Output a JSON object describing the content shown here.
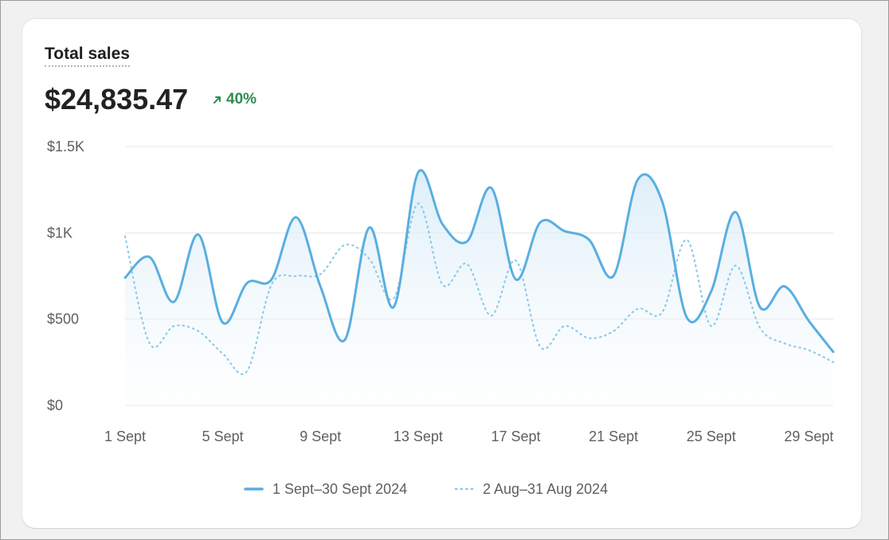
{
  "card": {
    "title": "Total sales",
    "total": "$24,835.47",
    "change": "40%",
    "change_color": "#2e8b4e"
  },
  "colors": {
    "current": "#5aaee0",
    "previous": "#8fcbe8",
    "grid": "#e6e6e6",
    "text": "#5f5f5f"
  },
  "chart_data": {
    "type": "line",
    "title": "Total sales",
    "xlabel": "",
    "ylabel": "",
    "ylim": [
      0,
      1500
    ],
    "yticks": [
      0,
      500,
      1000,
      1500
    ],
    "ytick_labels": [
      "$0",
      "$500",
      "$1K",
      "$1.5K"
    ],
    "xtick_labels": [
      "1 Sept",
      "5 Sept",
      "9 Sept",
      "13 Sept",
      "17 Sept",
      "21 Sept",
      "25 Sept",
      "29 Sept"
    ],
    "x": [
      "1 Sept",
      "2 Sept",
      "3 Sept",
      "4 Sept",
      "5 Sept",
      "6 Sept",
      "7 Sept",
      "8 Sept",
      "9 Sept",
      "10 Sept",
      "11 Sept",
      "12 Sept",
      "13 Sept",
      "14 Sept",
      "15 Sept",
      "16 Sept",
      "17 Sept",
      "18 Sept",
      "19 Sept",
      "20 Sept",
      "21 Sept",
      "22 Sept",
      "23 Sept",
      "24 Sept",
      "25 Sept",
      "26 Sept",
      "27 Sept",
      "28 Sept",
      "29 Sept",
      "30 Sept"
    ],
    "grid": true,
    "legend": "bottom-center",
    "series": [
      {
        "name": "1 Sept–30 Sept 2024",
        "style": "solid",
        "values": [
          740,
          860,
          600,
          990,
          480,
          710,
          730,
          1090,
          690,
          380,
          1030,
          570,
          1350,
          1050,
          950,
          1260,
          730,
          1060,
          1010,
          960,
          750,
          1310,
          1180,
          510,
          660,
          1120,
          570,
          690,
          490,
          310
        ]
      },
      {
        "name": "2 Aug–31 Aug 2024",
        "style": "dotted",
        "values": [
          980,
          360,
          460,
          430,
          300,
          200,
          700,
          750,
          760,
          930,
          850,
          620,
          1170,
          700,
          820,
          520,
          840,
          340,
          460,
          390,
          430,
          560,
          540,
          960,
          460,
          810,
          450,
          360,
          320,
          250
        ]
      }
    ]
  }
}
